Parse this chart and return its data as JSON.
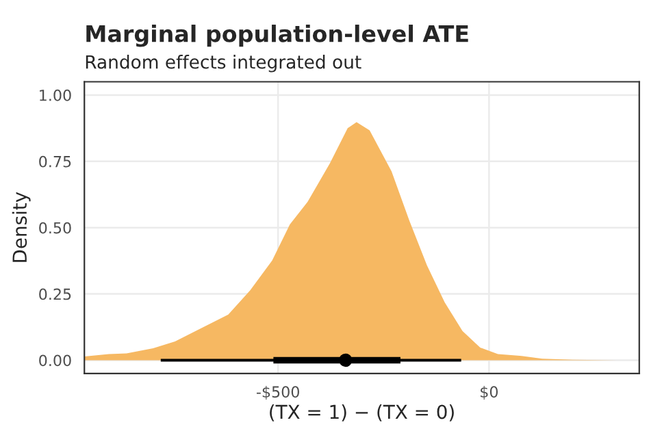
{
  "chart_data": {
    "type": "area",
    "title": "Marginal population-level ATE",
    "subtitle": "Random effects integrated out",
    "xlabel": "(TX = 1) − (TX = 0)",
    "ylabel": "Density",
    "xlim": [
      -959,
      356
    ],
    "ylim": [
      -0.05,
      1.05
    ],
    "xticks": [
      {
        "value": -500,
        "label": "-$500"
      },
      {
        "value": 0,
        "label": "$0"
      }
    ],
    "yticks": [
      {
        "value": 0,
        "label": "0.00"
      },
      {
        "value": 0.25,
        "label": "0.25"
      },
      {
        "value": 0.5,
        "label": "0.50"
      },
      {
        "value": 0.75,
        "label": "0.75"
      },
      {
        "value": 1,
        "label": "1.00"
      }
    ],
    "grid": true,
    "series": [
      {
        "color": "#f6b862",
        "x": [
          -959,
          -901,
          -859,
          -796,
          -744,
          -692,
          -618,
          -566,
          -514,
          -472,
          -430,
          -377,
          -335,
          -314,
          -283,
          -231,
          -189,
          -147,
          -105,
          -63,
          -21,
          21,
          73,
          126,
          199,
          304,
          356
        ],
        "values": [
          0.014,
          0.023,
          0.026,
          0.045,
          0.071,
          0.113,
          0.172,
          0.264,
          0.376,
          0.512,
          0.597,
          0.743,
          0.875,
          0.898,
          0.867,
          0.712,
          0.527,
          0.357,
          0.218,
          0.11,
          0.048,
          0.023,
          0.017,
          0.006,
          0.002,
          0.0,
          0.0
        ]
      },
      {
        "type": "line",
        "color": "#000000",
        "x": [
          -511,
          -210
        ],
        "values": [
          0,
          0
        ]
      },
      {
        "type": "scatter",
        "color": "#000000",
        "marker": "circle",
        "x": [
          -340
        ],
        "values": [
          0
        ],
        "xerrors": [
          [
            -778,
            -66
          ]
        ]
      }
    ]
  }
}
